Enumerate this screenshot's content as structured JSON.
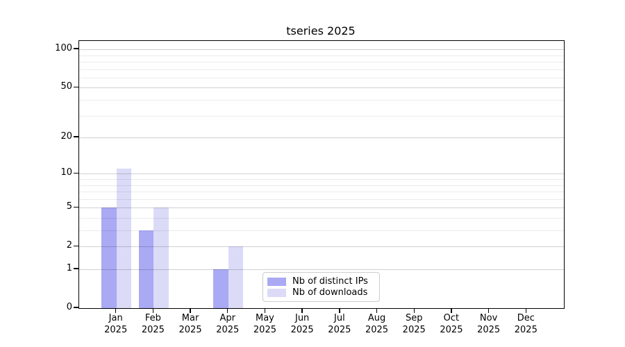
{
  "window": {
    "background": "#ffffff"
  },
  "chart_data": {
    "type": "bar",
    "title": "tseries 2025",
    "categories": [
      "Jan",
      "Feb",
      "Mar",
      "Apr",
      "May",
      "Jun",
      "Jul",
      "Aug",
      "Sep",
      "Oct",
      "Nov",
      "Dec"
    ],
    "category_sublabel": "2025",
    "series": [
      {
        "name": "Nb of distinct IPs",
        "color": "#a9a9f4",
        "values": [
          5,
          3,
          0,
          1,
          0,
          0,
          0,
          0,
          0,
          0,
          0,
          0
        ]
      },
      {
        "name": "Nb of downloads",
        "color": "#dbdbf8",
        "values": [
          11,
          5,
          0,
          2,
          0,
          0,
          0,
          0,
          0,
          0,
          0,
          0
        ]
      }
    ],
    "xlabel": "",
    "ylabel": "",
    "yscale": "log1p",
    "ylim": [
      0,
      116
    ],
    "yticks": [
      0,
      1,
      2,
      5,
      10,
      20,
      50,
      100
    ],
    "yticks_minor": [
      3,
      4,
      6,
      7,
      8,
      9,
      30,
      40,
      60,
      70,
      80,
      90
    ],
    "grid": {
      "major_color": "#d1d1d1",
      "minor_color": "#ebebeb",
      "enabled": true
    },
    "legend": {
      "position": "lower center"
    }
  }
}
